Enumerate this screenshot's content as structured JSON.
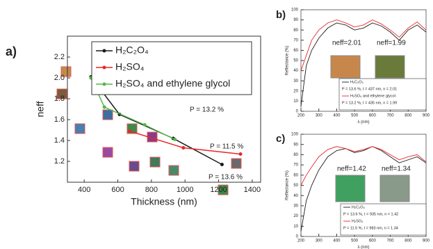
{
  "chart_data": [
    {
      "type": "line",
      "label": "a)",
      "xlabel": "Thickness (nm)",
      "ylabel": "neff",
      "xlim": [
        300,
        1450
      ],
      "ylim": [
        1.0,
        2.4
      ],
      "xticks": [
        400,
        600,
        800,
        1000,
        1200,
        1400
      ],
      "yticks": [
        1.2,
        1.4,
        1.6,
        1.8,
        {
          "value": 2,
          "label": "2.0"
        },
        2.2
      ],
      "series": [
        {
          "name": "H₂C₂O₄",
          "color": "#1a1a1a",
          "x": [
            440,
            610,
            930,
            1220
          ],
          "values": [
            2.01,
            1.65,
            1.42,
            1.17
          ]
        },
        {
          "name": "H₂SO₄",
          "color": "#e8262b",
          "x": [
            670,
            990,
            1330
          ],
          "values": [
            1.49,
            1.33,
            1.27
          ]
        },
        {
          "name": "H₂SO₄ and ethylene glycol",
          "color": "#52b848",
          "x": [
            440,
            520,
            760,
            940
          ],
          "values": [
            2.0,
            1.72,
            1.55,
            1.41
          ]
        }
      ],
      "annotations": [
        {
          "text": "P = 13.2 %",
          "color": "#52b848"
        },
        {
          "text": "P = 11.5 %",
          "color": "#e8262b"
        },
        {
          "text": "P = 13.6 %",
          "color": "#1a1a1a"
        }
      ]
    },
    {
      "type": "line",
      "label": "b)",
      "xlabel": "λ (nm)",
      "ylabel": "Reflectance (%)",
      "xlim": [
        200,
        900
      ],
      "ylim": [
        0,
        100
      ],
      "xticks": [
        200,
        300,
        400,
        500,
        600,
        700,
        800,
        900
      ],
      "yticks": [
        0,
        10,
        20,
        30,
        40,
        50,
        60,
        70,
        80,
        90,
        100
      ],
      "x": [
        200,
        230,
        260,
        300,
        350,
        400,
        450,
        500,
        550,
        600,
        650,
        700,
        750,
        800,
        850,
        900
      ],
      "series": [
        {
          "name": "H₂C₂O₄",
          "note": "P = 13.6 %, t = 437 nm, n = 2.01",
          "color": "#1a1a1a",
          "values": [
            5,
            45,
            60,
            72,
            82,
            87,
            85,
            80,
            82,
            87,
            84,
            78,
            70,
            80,
            85,
            78
          ]
        },
        {
          "name": "H₂SO₄ and ethylene glycol",
          "note": "P = 13.2 %, t = 435 nm, n = 1.99",
          "color": "#e8262b",
          "values": [
            40,
            55,
            70,
            80,
            87,
            90,
            87,
            83,
            85,
            90,
            86,
            80,
            73,
            82,
            88,
            80
          ]
        }
      ],
      "inset_labels": [
        "neff=2.01",
        "neff=1.99"
      ]
    },
    {
      "type": "line",
      "label": "c)",
      "xlabel": "λ (nm)",
      "ylabel": "Reflectance (%)",
      "xlim": [
        200,
        900
      ],
      "ylim": [
        0,
        100
      ],
      "xticks": [
        200,
        300,
        400,
        500,
        600,
        700,
        800,
        900
      ],
      "yticks": [
        0,
        10,
        20,
        30,
        40,
        50,
        60,
        70,
        80,
        90,
        100
      ],
      "x": [
        200,
        230,
        260,
        300,
        350,
        400,
        450,
        500,
        550,
        600,
        650,
        700,
        750,
        800,
        850,
        900
      ],
      "series": [
        {
          "name": "H₂C₂O₄",
          "note": "P = 13.6 %, t = 935 nm, n = 1.42",
          "color": "#1a1a1a",
          "values": [
            5,
            35,
            50,
            65,
            78,
            84,
            86,
            82,
            84,
            88,
            84,
            78,
            72,
            75,
            78,
            72
          ]
        },
        {
          "name": "H₂SO₄",
          "note": "P = 11.5 %, t = 983 nm, n = 1.34",
          "color": "#e8262b",
          "values": [
            50,
            60,
            68,
            78,
            85,
            88,
            86,
            83,
            85,
            88,
            85,
            80,
            75,
            78,
            80,
            73
          ]
        }
      ],
      "inset_labels": [
        "neff=1.42",
        "neff=1.34"
      ]
    }
  ]
}
